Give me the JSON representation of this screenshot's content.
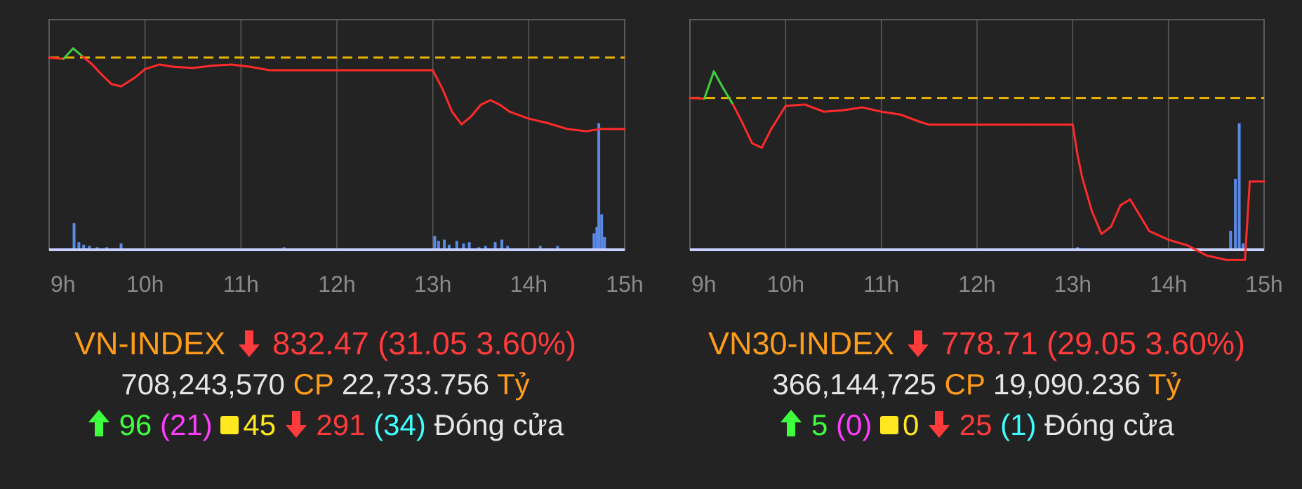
{
  "chart_data": [
    {
      "type": "line",
      "x_ticks": [
        "9h",
        "10h",
        "11h",
        "12h",
        "13h",
        "14h",
        "15h"
      ],
      "reference": 863.52,
      "ylim": [
        780,
        880
      ],
      "series": [
        {
          "line_color": "#ff2a2a",
          "x": [
            9.0,
            9.15,
            9.25,
            9.35,
            9.45,
            9.55,
            9.65,
            9.75,
            9.9,
            10.0,
            10.15,
            10.3,
            10.5,
            10.7,
            10.9,
            11.1,
            11.3,
            11.5,
            12.0,
            12.5,
            13.0,
            13.1,
            13.2,
            13.3,
            13.4,
            13.5,
            13.6,
            13.7,
            13.8,
            13.9,
            14.0,
            14.2,
            14.4,
            14.6,
            14.75,
            14.9,
            15.0
          ],
          "y": [
            863.5,
            863.0,
            867.5,
            864.0,
            860.5,
            856.0,
            852.0,
            851.0,
            855.0,
            858.5,
            860.5,
            859.5,
            859.0,
            860.0,
            860.5,
            859.5,
            858.0,
            858.0,
            858.0,
            858.0,
            858.0,
            850.0,
            840.0,
            834.5,
            838.0,
            843.0,
            845.0,
            843.0,
            840.0,
            838.5,
            837.0,
            835.0,
            832.5,
            831.5,
            832.5,
            832.47,
            832.47
          ]
        }
      ],
      "volume": {
        "x": [
          9.26,
          9.31,
          9.36,
          9.42,
          9.5,
          9.6,
          9.75,
          11.45,
          13.02,
          13.06,
          13.12,
          13.17,
          13.25,
          13.32,
          13.38,
          13.48,
          13.55,
          13.65,
          13.72,
          13.78,
          14.12,
          14.3,
          14.68,
          14.71,
          14.73,
          14.76,
          14.79
        ],
        "v": [
          0.21,
          0.06,
          0.04,
          0.03,
          0.02,
          0.02,
          0.05,
          0.02,
          0.11,
          0.07,
          0.08,
          0.04,
          0.07,
          0.05,
          0.06,
          0.02,
          0.03,
          0.06,
          0.08,
          0.03,
          0.03,
          0.03,
          0.13,
          0.18,
          1.0,
          0.28,
          0.1
        ]
      }
    },
    {
      "type": "line",
      "x_ticks": [
        "9h",
        "10h",
        "11h",
        "12h",
        "13h",
        "14h",
        "15h"
      ],
      "reference": 807.76,
      "ylim": [
        755,
        835
      ],
      "series": [
        {
          "line_color": "#ff2a2a",
          "x": [
            9.0,
            9.15,
            9.25,
            9.35,
            9.45,
            9.55,
            9.65,
            9.75,
            9.85,
            10.0,
            10.2,
            10.4,
            10.6,
            10.8,
            11.0,
            11.2,
            11.4,
            11.5,
            12.0,
            12.5,
            13.0,
            13.05,
            13.1,
            13.2,
            13.3,
            13.4,
            13.5,
            13.6,
            13.7,
            13.8,
            13.9,
            14.0,
            14.2,
            14.4,
            14.6,
            14.8,
            14.85,
            15.0
          ],
          "y": [
            807.8,
            807.5,
            817.0,
            811.0,
            805.5,
            799.0,
            792.0,
            790.5,
            797.0,
            805.0,
            805.5,
            803.0,
            803.5,
            804.5,
            803.0,
            802.0,
            799.5,
            798.5,
            798.5,
            798.5,
            798.5,
            788.0,
            780.0,
            768.5,
            760.5,
            763.0,
            770.5,
            772.5,
            767.0,
            761.5,
            760.0,
            758.5,
            756.5,
            753.0,
            751.5,
            751.5,
            778.71,
            778.71
          ]
        }
      ],
      "volume": {
        "x": [
          13.05,
          14.65,
          14.7,
          14.74,
          14.78
        ],
        "v": [
          0.02,
          0.15,
          0.56,
          1.0,
          0.05
        ]
      }
    }
  ],
  "left": {
    "index_name": "VN-INDEX",
    "value": "832.47",
    "change": "(31.05 3.60%)",
    "volume": "708,243,570",
    "volume_unit": "CP",
    "turnover": "22,733.756",
    "turnover_unit": "Tỷ",
    "up": "96",
    "ceiling": "(21)",
    "unchanged": "45",
    "down": "291",
    "floor": "(34)",
    "status": "Đóng cửa"
  },
  "right": {
    "index_name": "VN30-INDEX",
    "value": "778.71",
    "change": "(29.05 3.60%)",
    "volume": "366,144,725",
    "volume_unit": "CP",
    "turnover": "19,090.236",
    "turnover_unit": "Tỷ",
    "up": "5",
    "ceiling": "(0)",
    "unchanged": "0",
    "down": "25",
    "floor": "(1)",
    "status": "Đóng cửa"
  },
  "colors": {
    "background": "#232323",
    "grid": "#5a5a5a",
    "reference_line": "#e8b400",
    "above_line": "#3dd13d",
    "below_line": "#ff2a2a",
    "volume_bar": "#5a8ae6",
    "baseline": "#c8d0ff"
  },
  "icons": {
    "up": "arrow-up-icon",
    "down": "arrow-down-icon",
    "unchanged": "square-icon"
  }
}
